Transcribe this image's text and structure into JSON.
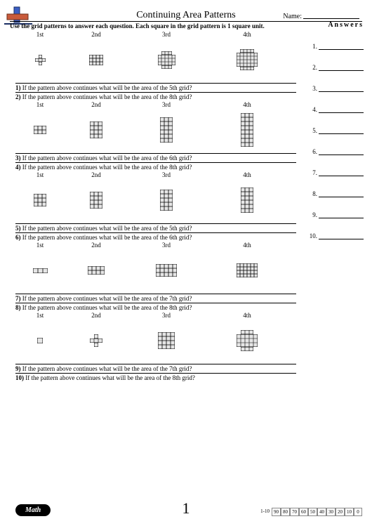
{
  "header": {
    "title": "Continuing Area Patterns",
    "name_label": "Name:",
    "instructions": "Use the grid patterns to answer each question. Each square in the grid pattern is 1 square unit.",
    "answers_label": "Answers"
  },
  "ordinals": [
    "1st",
    "2nd",
    "3rd",
    "4th"
  ],
  "rows": [
    {
      "grids": [
        {
          "type": "plus",
          "cols": 3,
          "rows": 3,
          "cell": 5
        },
        {
          "type": "rect",
          "cols": 4,
          "rows": 3,
          "cell": 5
        },
        {
          "type": "plus",
          "cols": 5,
          "rows": 5,
          "cell": 5
        },
        {
          "type": "plus",
          "cols": 6,
          "rows": 6,
          "cell": 5
        }
      ],
      "questions": [
        {
          "n": "1)",
          "text": "If the pattern above continues what will be the area of the 5th grid?"
        },
        {
          "n": "2)",
          "text": "If the pattern above continues what will be the area of the 8th grid?"
        }
      ]
    },
    {
      "grids": [
        {
          "type": "rect",
          "cols": 3,
          "rows": 2,
          "cell": 6
        },
        {
          "type": "rect",
          "cols": 3,
          "rows": 4,
          "cell": 6
        },
        {
          "type": "rect",
          "cols": 3,
          "rows": 6,
          "cell": 6
        },
        {
          "type": "rect",
          "cols": 3,
          "rows": 8,
          "cell": 6
        }
      ],
      "questions": [
        {
          "n": "3)",
          "text": "If the pattern above continues what will be the area of the 6th grid?"
        },
        {
          "n": "4)",
          "text": "If the pattern above continues what will be the area of the 8th grid?"
        }
      ]
    },
    {
      "grids": [
        {
          "type": "rect",
          "cols": 3,
          "rows": 3,
          "cell": 6
        },
        {
          "type": "rect",
          "cols": 3,
          "rows": 4,
          "cell": 6
        },
        {
          "type": "rect",
          "cols": 3,
          "rows": 5,
          "cell": 6
        },
        {
          "type": "rect",
          "cols": 3,
          "rows": 6,
          "cell": 6
        }
      ],
      "questions": [
        {
          "n": "5)",
          "text": "If the pattern above continues what will be the area of the 5th grid?"
        },
        {
          "n": "6)",
          "text": "If the pattern above continues what will be the area of the 6th grid?"
        }
      ]
    },
    {
      "grids": [
        {
          "type": "rect",
          "cols": 3,
          "rows": 1,
          "cell": 7
        },
        {
          "type": "rect",
          "cols": 4,
          "rows": 2,
          "cell": 6
        },
        {
          "type": "rect",
          "cols": 5,
          "rows": 3,
          "cell": 6
        },
        {
          "type": "rect",
          "cols": 6,
          "rows": 4,
          "cell": 5
        }
      ],
      "questions": [
        {
          "n": "7)",
          "text": "If the pattern above continues what will be the area of the 7th grid?"
        },
        {
          "n": "8)",
          "text": "If the pattern above continues what will be the area of the 8th grid?"
        }
      ]
    },
    {
      "grids": [
        {
          "type": "rect",
          "cols": 1,
          "rows": 1,
          "cell": 8
        },
        {
          "type": "plus",
          "cols": 3,
          "rows": 3,
          "cell": 6
        },
        {
          "type": "rect",
          "cols": 4,
          "rows": 4,
          "cell": 6
        },
        {
          "type": "plus",
          "cols": 5,
          "rows": 5,
          "cell": 6
        }
      ],
      "questions": [
        {
          "n": "9)",
          "text": "If the pattern above continues what will be the area of the 7th grid?"
        },
        {
          "n": "10)",
          "text": "If the pattern above continues what will be the area of the 8th grid?"
        }
      ]
    }
  ],
  "answers": {
    "count": 10
  },
  "footer": {
    "badge": "Math",
    "page": "1",
    "score_label": "1-10",
    "scores": [
      "90",
      "80",
      "70",
      "60",
      "50",
      "40",
      "30",
      "20",
      "10",
      "0"
    ]
  },
  "colors": {
    "stroke": "#000000",
    "fill": "#e6e6e6",
    "logo_v": "#3b5fc4",
    "logo_h": "#c95b3b"
  },
  "layout": {
    "slot_widths": [
      70,
      90,
      110,
      120
    ]
  }
}
